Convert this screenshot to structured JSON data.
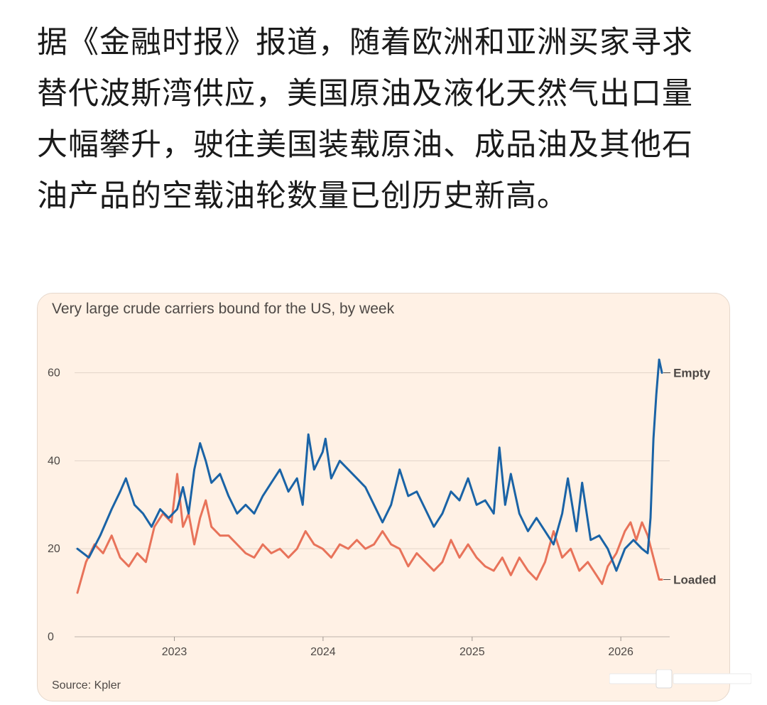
{
  "headline": "据《金融时报》报道，随着欧洲和亚洲买家寻求替代波斯湾供应，美国原油及液化天然气出口量大幅攀升，驶往美国装载原油、成品油及其他石油产品的空载油轮数量已创历史新高。",
  "chart_data": {
    "type": "line",
    "title": "Very large crude carriers bound for the US, by week",
    "source": "Source: Kpler",
    "xlabel": "",
    "ylabel": "",
    "y_ticks": [
      0,
      20,
      40,
      60
    ],
    "ylim": [
      0,
      68
    ],
    "x_ticks": [
      "2023",
      "2024",
      "2025",
      "2026"
    ],
    "xlim": [
      "2022-05-01",
      "2026-05-01"
    ],
    "grid": "horizontal",
    "series": [
      {
        "name": "Empty",
        "color": "#1a63a6",
        "points": [
          [
            "2022-05-08",
            20
          ],
          [
            "2022-06-05",
            18
          ],
          [
            "2022-07-03",
            23
          ],
          [
            "2022-07-31",
            29
          ],
          [
            "2022-08-21",
            33
          ],
          [
            "2022-09-04",
            36
          ],
          [
            "2022-09-25",
            30
          ],
          [
            "2022-10-16",
            28
          ],
          [
            "2022-11-06",
            25
          ],
          [
            "2022-11-27",
            29
          ],
          [
            "2022-12-18",
            27
          ],
          [
            "2023-01-08",
            29
          ],
          [
            "2023-01-22",
            34
          ],
          [
            "2023-02-05",
            28
          ],
          [
            "2023-02-19",
            38
          ],
          [
            "2023-03-05",
            44
          ],
          [
            "2023-03-19",
            40
          ],
          [
            "2023-04-02",
            35
          ],
          [
            "2023-04-23",
            37
          ],
          [
            "2023-05-14",
            32
          ],
          [
            "2023-06-04",
            28
          ],
          [
            "2023-06-25",
            30
          ],
          [
            "2023-07-16",
            28
          ],
          [
            "2023-08-06",
            32
          ],
          [
            "2023-08-27",
            35
          ],
          [
            "2023-09-17",
            38
          ],
          [
            "2023-10-08",
            33
          ],
          [
            "2023-10-29",
            36
          ],
          [
            "2023-11-12",
            30
          ],
          [
            "2023-11-26",
            46
          ],
          [
            "2023-12-10",
            38
          ],
          [
            "2023-12-31",
            42
          ],
          [
            "2024-01-07",
            45
          ],
          [
            "2024-01-21",
            36
          ],
          [
            "2024-02-11",
            40
          ],
          [
            "2024-03-03",
            38
          ],
          [
            "2024-03-24",
            36
          ],
          [
            "2024-04-14",
            34
          ],
          [
            "2024-05-05",
            30
          ],
          [
            "2024-05-26",
            26
          ],
          [
            "2024-06-16",
            30
          ],
          [
            "2024-07-07",
            38
          ],
          [
            "2024-07-28",
            32
          ],
          [
            "2024-08-18",
            33
          ],
          [
            "2024-09-08",
            29
          ],
          [
            "2024-09-29",
            25
          ],
          [
            "2024-10-20",
            28
          ],
          [
            "2024-11-10",
            33
          ],
          [
            "2024-12-01",
            31
          ],
          [
            "2024-12-22",
            36
          ],
          [
            "2025-01-12",
            30
          ],
          [
            "2025-02-02",
            31
          ],
          [
            "2025-02-23",
            28
          ],
          [
            "2025-03-09",
            43
          ],
          [
            "2025-03-23",
            30
          ],
          [
            "2025-04-06",
            37
          ],
          [
            "2025-04-27",
            28
          ],
          [
            "2025-05-18",
            24
          ],
          [
            "2025-06-08",
            27
          ],
          [
            "2025-06-29",
            24
          ],
          [
            "2025-07-20",
            21
          ],
          [
            "2025-08-10",
            28
          ],
          [
            "2025-08-24",
            36
          ],
          [
            "2025-09-14",
            24
          ],
          [
            "2025-09-28",
            35
          ],
          [
            "2025-10-19",
            22
          ],
          [
            "2025-11-09",
            23
          ],
          [
            "2025-11-30",
            20
          ],
          [
            "2025-12-21",
            15
          ],
          [
            "2026-01-11",
            20
          ],
          [
            "2026-02-01",
            22
          ],
          [
            "2026-02-22",
            20
          ],
          [
            "2026-03-08",
            19
          ],
          [
            "2026-03-15",
            27
          ],
          [
            "2026-03-22",
            45
          ],
          [
            "2026-03-29",
            55
          ],
          [
            "2026-04-05",
            63
          ],
          [
            "2026-04-12",
            60
          ]
        ],
        "end_label": "Empty"
      },
      {
        "name": "Loaded",
        "color": "#e8735a",
        "points": [
          [
            "2022-05-08",
            10
          ],
          [
            "2022-05-29",
            17
          ],
          [
            "2022-06-19",
            21
          ],
          [
            "2022-07-10",
            19
          ],
          [
            "2022-07-31",
            23
          ],
          [
            "2022-08-21",
            18
          ],
          [
            "2022-09-11",
            16
          ],
          [
            "2022-10-02",
            19
          ],
          [
            "2022-10-23",
            17
          ],
          [
            "2022-11-13",
            25
          ],
          [
            "2022-12-04",
            28
          ],
          [
            "2022-12-25",
            26
          ],
          [
            "2023-01-08",
            37
          ],
          [
            "2023-01-22",
            25
          ],
          [
            "2023-02-05",
            28
          ],
          [
            "2023-02-19",
            21
          ],
          [
            "2023-03-05",
            27
          ],
          [
            "2023-03-19",
            31
          ],
          [
            "2023-04-02",
            25
          ],
          [
            "2023-04-23",
            23
          ],
          [
            "2023-05-14",
            23
          ],
          [
            "2023-06-04",
            21
          ],
          [
            "2023-06-25",
            19
          ],
          [
            "2023-07-16",
            18
          ],
          [
            "2023-08-06",
            21
          ],
          [
            "2023-08-27",
            19
          ],
          [
            "2023-09-17",
            20
          ],
          [
            "2023-10-08",
            18
          ],
          [
            "2023-10-29",
            20
          ],
          [
            "2023-11-19",
            24
          ],
          [
            "2023-12-10",
            21
          ],
          [
            "2023-12-31",
            20
          ],
          [
            "2024-01-21",
            18
          ],
          [
            "2024-02-11",
            21
          ],
          [
            "2024-03-03",
            20
          ],
          [
            "2024-03-24",
            22
          ],
          [
            "2024-04-14",
            20
          ],
          [
            "2024-05-05",
            21
          ],
          [
            "2024-05-26",
            24
          ],
          [
            "2024-06-16",
            21
          ],
          [
            "2024-07-07",
            20
          ],
          [
            "2024-07-28",
            16
          ],
          [
            "2024-08-18",
            19
          ],
          [
            "2024-09-08",
            17
          ],
          [
            "2024-09-29",
            15
          ],
          [
            "2024-10-20",
            17
          ],
          [
            "2024-11-10",
            22
          ],
          [
            "2024-12-01",
            18
          ],
          [
            "2024-12-22",
            21
          ],
          [
            "2025-01-12",
            18
          ],
          [
            "2025-02-02",
            16
          ],
          [
            "2025-02-23",
            15
          ],
          [
            "2025-03-16",
            18
          ],
          [
            "2025-04-06",
            14
          ],
          [
            "2025-04-27",
            18
          ],
          [
            "2025-05-18",
            15
          ],
          [
            "2025-06-08",
            13
          ],
          [
            "2025-06-29",
            17
          ],
          [
            "2025-07-20",
            24
          ],
          [
            "2025-08-10",
            18
          ],
          [
            "2025-08-31",
            20
          ],
          [
            "2025-09-21",
            15
          ],
          [
            "2025-10-12",
            17
          ],
          [
            "2025-11-02",
            14
          ],
          [
            "2025-11-16",
            12
          ],
          [
            "2025-11-30",
            16
          ],
          [
            "2025-12-21",
            19
          ],
          [
            "2026-01-11",
            24
          ],
          [
            "2026-01-25",
            26
          ],
          [
            "2026-02-08",
            22
          ],
          [
            "2026-02-22",
            26
          ],
          [
            "2026-03-08",
            23
          ],
          [
            "2026-03-22",
            18
          ],
          [
            "2026-04-05",
            13
          ],
          [
            "2026-04-12",
            13
          ]
        ],
        "end_label": "Loaded"
      }
    ]
  },
  "watermark": {
    "color": "#ffffff"
  }
}
